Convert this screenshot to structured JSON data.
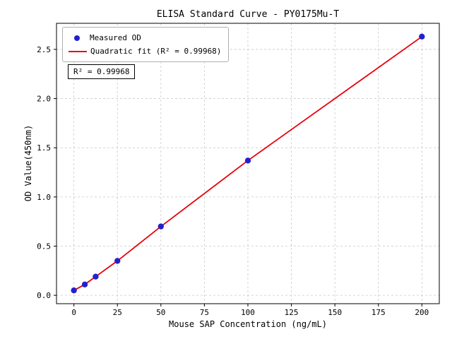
{
  "chart_data": {
    "type": "scatter",
    "title": "ELISA Standard Curve - PY0175Mu-T",
    "xlabel": "Mouse SAP Concentration (ng/mL)",
    "ylabel": "OD Value(450nm)",
    "x": [
      0,
      6.25,
      12.5,
      25,
      50,
      100,
      200
    ],
    "y": [
      0.05,
      0.11,
      0.19,
      0.35,
      0.7,
      1.37,
      2.63
    ],
    "series": [
      {
        "name": "Measured OD",
        "kind": "scatter"
      },
      {
        "name": "Quadratic fit (R² = 0.99968)",
        "kind": "line"
      }
    ],
    "fit": {
      "type": "quadratic",
      "r_squared": 0.99968
    },
    "annotation": "R² = 0.99968",
    "legend": {
      "position": "upper left",
      "entries": [
        "Measured OD",
        "Quadratic fit (R² = 0.99968)"
      ]
    },
    "xlim": [
      -10,
      210
    ],
    "ylim": [
      -0.085,
      2.765
    ],
    "xticks": [
      0,
      25,
      50,
      75,
      100,
      125,
      150,
      175,
      200
    ],
    "xtick_labels": [
      "0",
      "25",
      "50",
      "75",
      "100",
      "125",
      "150",
      "175",
      "200"
    ],
    "yticks": [
      0,
      0.5,
      1.0,
      1.5,
      2.0,
      2.5
    ],
    "ytick_labels": [
      "0.0",
      "0.5",
      "1.0",
      "1.5",
      "2.0",
      "2.5"
    ],
    "grid": true,
    "colors": {
      "points": "#2222cc",
      "fit_line": "#e8000b",
      "grid": "#c9c9c9",
      "frame": "#000000",
      "text": "#000000"
    }
  }
}
